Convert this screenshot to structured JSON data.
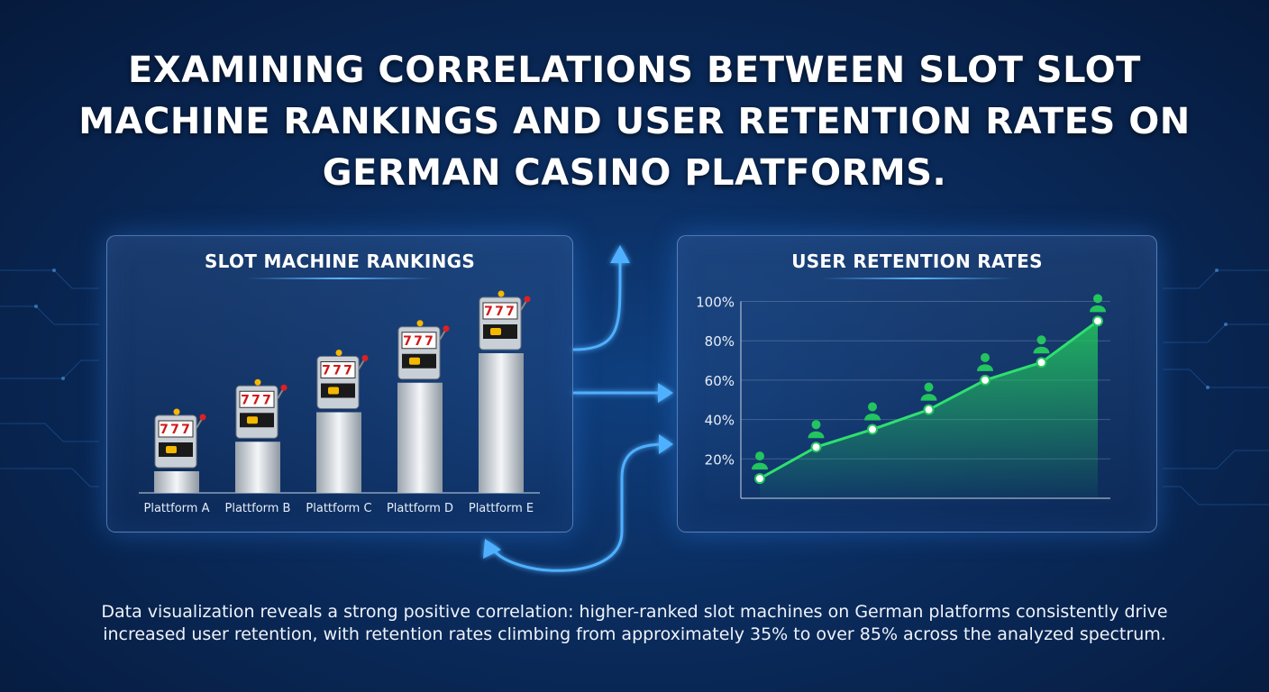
{
  "title": "EXAMINING CORRELATIONS BETWEEN SLOT SLOT MACHINE RANKINGS AND USER RETENTION RATES ON GERMAN CASINO PLATFORMS.",
  "caption": "Data visualization reveals a strong positive correlation: higher-ranked slot machines on German platforms consistently drive increased user retention, with retention rates climbing from approximately 35% to over 85% across the analyzed spectrum.",
  "colors": {
    "accent": "#3aa0ff",
    "retention_line": "#22c55e",
    "background": "#0a2b5c"
  },
  "icons": {
    "slot": "slot-machine-icon",
    "user": "user-icon"
  },
  "chart_data": [
    {
      "type": "bar",
      "title": "SLOT MACHINE RANKINGS",
      "categories": [
        "Plattform A",
        "Plattform B",
        "Plattform C",
        "Plattform D",
        "Plattform E"
      ],
      "values": [
        1,
        2,
        3,
        4,
        5
      ]
    },
    {
      "type": "area",
      "title": "USER RETENTION RATES",
      "y_ticks": [
        "100%",
        "80%",
        "60%",
        "40%",
        "20%"
      ],
      "ylim": [
        0,
        100
      ],
      "values": [
        10,
        26,
        35,
        45,
        60,
        69,
        90
      ],
      "grid": true
    }
  ]
}
